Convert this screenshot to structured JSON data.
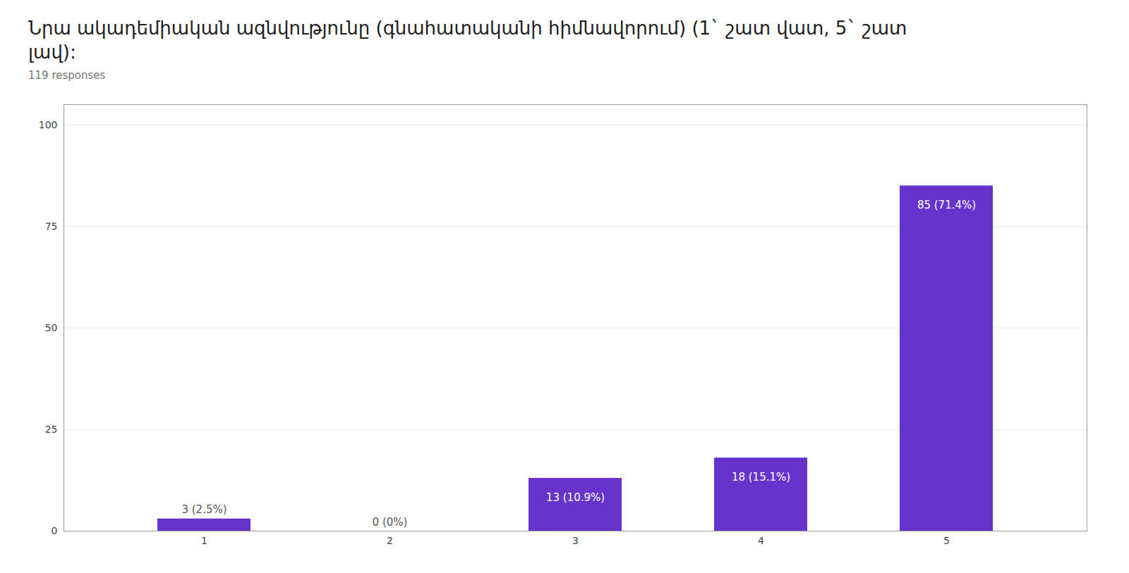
{
  "chart_data": {
    "type": "bar",
    "title": "Նրա ակադեմիական ազնվությունը (գնահատականի հիմնավորում)  (1` շատ վատ, 5` շատ լավ):",
    "subtitle": "119 responses",
    "categories": [
      "1",
      "2",
      "3",
      "4",
      "5"
    ],
    "values": [
      3,
      0,
      13,
      18,
      85
    ],
    "value_labels": [
      "3 (2.5%)",
      "0 (0%)",
      "13 (10.9%)",
      "18 (15.1%)",
      "85 (71.4%)"
    ],
    "data_labels": true,
    "color": "#6633cc",
    "ylim": [
      0,
      105
    ],
    "yticks": [
      0,
      25,
      50,
      75,
      100
    ],
    "grid": true
  }
}
